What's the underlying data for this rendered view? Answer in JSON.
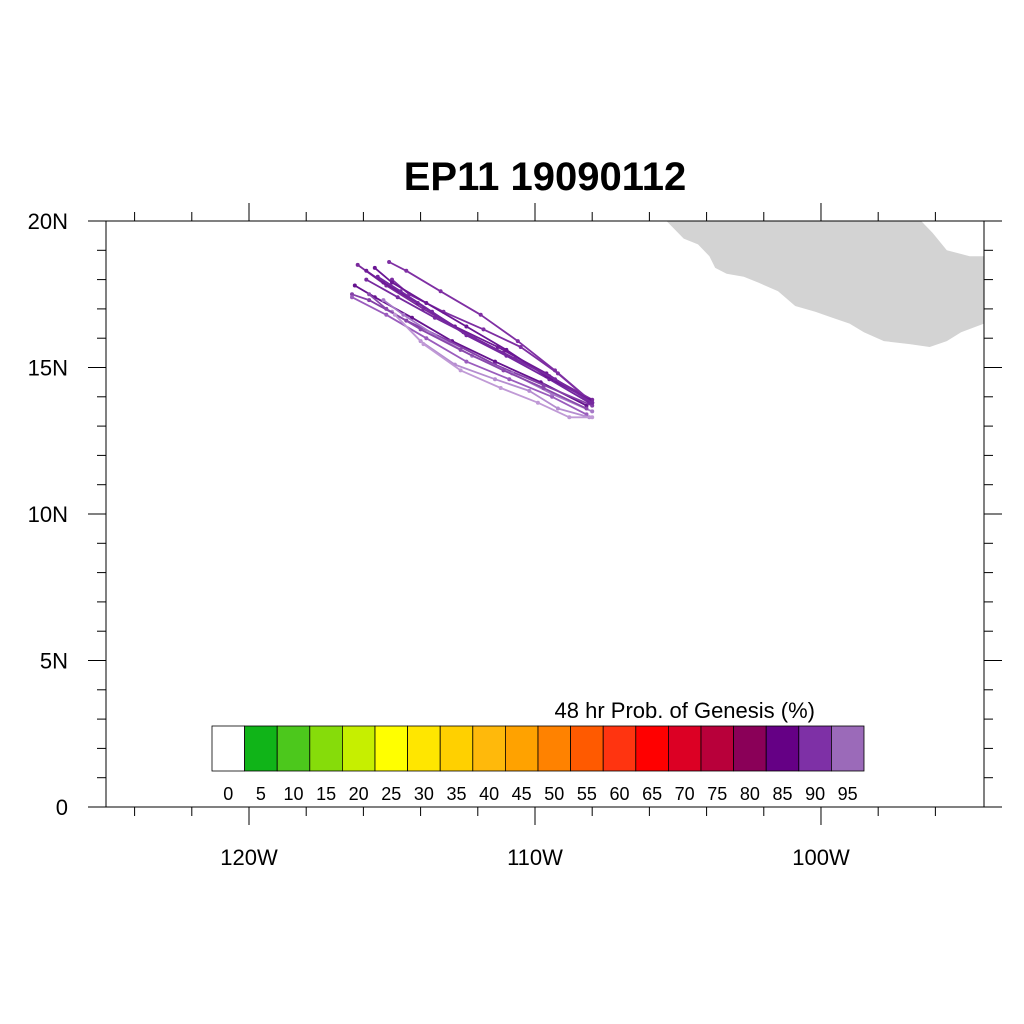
{
  "title": "EP11 19090112",
  "map": {
    "lon_range": [
      -125,
      -94.3
    ],
    "lat_range": [
      0,
      20
    ],
    "lat_ticks": [
      {
        "value": 0,
        "label": "0"
      },
      {
        "value": 5,
        "label": "5N"
      },
      {
        "value": 10,
        "label": "10N"
      },
      {
        "value": 15,
        "label": "15N"
      },
      {
        "value": 20,
        "label": "20N"
      }
    ],
    "lon_ticks": [
      {
        "value": -120,
        "label": "120W"
      },
      {
        "value": -110,
        "label": "110W"
      },
      {
        "value": -100,
        "label": "100W"
      }
    ],
    "land_color": "#d3d3d3",
    "land_outline": [
      [
        -105.4,
        20
      ],
      [
        -104.8,
        19.4
      ],
      [
        -104.3,
        19.2
      ],
      [
        -103.9,
        18.8
      ],
      [
        -103.7,
        18.4
      ],
      [
        -103.3,
        18.2
      ],
      [
        -102.7,
        18.1
      ],
      [
        -102.2,
        17.9
      ],
      [
        -101.5,
        17.6
      ],
      [
        -100.9,
        17.1
      ],
      [
        -100.2,
        16.9
      ],
      [
        -99.6,
        16.7
      ],
      [
        -99,
        16.5
      ],
      [
        -98.5,
        16.2
      ],
      [
        -97.8,
        15.9
      ],
      [
        -96.9,
        15.8
      ],
      [
        -96.2,
        15.7
      ],
      [
        -95.6,
        15.9
      ],
      [
        -95.1,
        16.2
      ],
      [
        -94.3,
        16.5
      ],
      [
        -94.3,
        18.8
      ],
      [
        -94.8,
        18.8
      ],
      [
        -95.6,
        19
      ],
      [
        -96.1,
        19.6
      ],
      [
        -96.5,
        20
      ]
    ]
  },
  "colorbar": {
    "title": "48 hr Prob. of Genesis (%)",
    "labels": [
      "0",
      "5",
      "10",
      "15",
      "20",
      "25",
      "30",
      "35",
      "40",
      "45",
      "50",
      "55",
      "60",
      "65",
      "70",
      "75",
      "80",
      "85",
      "90",
      "95"
    ],
    "colors": [
      "#ffffff",
      "#10b418",
      "#4cc81c",
      "#86dc0a",
      "#c6ef00",
      "#ffff00",
      "#ffe600",
      "#ffd000",
      "#ffb90b",
      "#ffa200",
      "#ff8200",
      "#ff5a00",
      "#ff3410",
      "#ff0000",
      "#dc0024",
      "#b8003a",
      "#8a0058",
      "#650085",
      "#7e30a6",
      "#9b6ab9"
    ]
  },
  "tracks": [
    {
      "color": "#7a2a9c",
      "points": [
        [
          -108,
          13.9
        ],
        [
          -109.5,
          14.7
        ],
        [
          -111.1,
          15.5
        ],
        [
          -112.5,
          16.2
        ],
        [
          -113.9,
          17.0
        ],
        [
          -115.2,
          17.8
        ],
        [
          -116.2,
          18.5
        ]
      ]
    },
    {
      "color": "#6e1a96",
      "points": [
        [
          -108,
          13.8
        ],
        [
          -109.6,
          14.8
        ],
        [
          -111.3,
          15.7
        ],
        [
          -112.8,
          16.4
        ],
        [
          -114.1,
          17.2
        ],
        [
          -115.3,
          17.9
        ],
        [
          -115.9,
          18.3
        ]
      ]
    },
    {
      "color": "#7f2fa3",
      "points": [
        [
          -108.1,
          13.9
        ],
        [
          -109.3,
          14.9
        ],
        [
          -110.6,
          15.9
        ],
        [
          -111.9,
          16.8
        ],
        [
          -113.3,
          17.6
        ],
        [
          -114.5,
          18.3
        ],
        [
          -115.1,
          18.6
        ]
      ]
    },
    {
      "color": "#65128e",
      "points": [
        [
          -108.2,
          13.7
        ],
        [
          -109.8,
          14.5
        ],
        [
          -111.4,
          15.2
        ],
        [
          -112.9,
          15.9
        ],
        [
          -114.3,
          16.7
        ],
        [
          -115.6,
          17.4
        ],
        [
          -116.3,
          17.8
        ]
      ]
    },
    {
      "color": "#8440a8",
      "points": [
        [
          -108,
          13.7
        ],
        [
          -109.7,
          14.4
        ],
        [
          -111.4,
          15.1
        ],
        [
          -113.0,
          15.9
        ],
        [
          -114.5,
          16.6
        ],
        [
          -115.8,
          17.3
        ],
        [
          -116.4,
          17.5
        ]
      ]
    },
    {
      "color": "#7326a0",
      "points": [
        [
          -108.1,
          13.8
        ],
        [
          -109.5,
          14.6
        ],
        [
          -111.0,
          15.4
        ],
        [
          -112.4,
          16.1
        ],
        [
          -113.6,
          16.9
        ],
        [
          -114.7,
          17.6
        ],
        [
          -115.5,
          18.1
        ]
      ]
    },
    {
      "color": "#9a5cbd",
      "points": [
        [
          -108.2,
          13.4
        ],
        [
          -109.4,
          14.0
        ],
        [
          -110.9,
          14.6
        ],
        [
          -112.4,
          15.2
        ],
        [
          -113.8,
          16.0
        ],
        [
          -115.2,
          16.8
        ],
        [
          -116.4,
          17.4
        ]
      ]
    },
    {
      "color": "#b58dd0",
      "points": [
        [
          -108.1,
          13.3
        ],
        [
          -109.2,
          13.6
        ],
        [
          -110.2,
          14.2
        ],
        [
          -111.4,
          14.6
        ],
        [
          -112.8,
          15.1
        ],
        [
          -114.0,
          15.9
        ],
        [
          -115.0,
          16.9
        ]
      ]
    },
    {
      "color": "#a679c7",
      "points": [
        [
          -108,
          13.5
        ],
        [
          -109.4,
          14.1
        ],
        [
          -110.8,
          14.8
        ],
        [
          -112.2,
          15.4
        ],
        [
          -113.5,
          16.1
        ],
        [
          -114.6,
          16.8
        ],
        [
          -115.3,
          17.3
        ]
      ]
    },
    {
      "color": "#7d2ea2",
      "points": [
        [
          -108,
          13.8
        ],
        [
          -109.2,
          14.8
        ],
        [
          -110.5,
          15.7
        ],
        [
          -111.8,
          16.3
        ],
        [
          -113.2,
          16.9
        ],
        [
          -114.4,
          17.5
        ],
        [
          -115.0,
          18.0
        ]
      ]
    },
    {
      "color": "#6a1694",
      "points": [
        [
          -108.1,
          13.9
        ],
        [
          -109.6,
          14.7
        ],
        [
          -111.0,
          15.6
        ],
        [
          -112.4,
          16.4
        ],
        [
          -113.8,
          17.2
        ],
        [
          -115.0,
          17.9
        ],
        [
          -115.6,
          18.4
        ]
      ]
    },
    {
      "color": "#8948ac",
      "points": [
        [
          -108.2,
          13.6
        ],
        [
          -109.7,
          14.3
        ],
        [
          -111.1,
          14.9
        ],
        [
          -112.6,
          15.6
        ],
        [
          -114.0,
          16.3
        ],
        [
          -115.2,
          17.0
        ],
        [
          -115.8,
          17.5
        ]
      ]
    },
    {
      "color": "#76299f",
      "points": [
        [
          -108,
          13.8
        ],
        [
          -109.3,
          14.6
        ],
        [
          -110.7,
          15.3
        ],
        [
          -112.1,
          16.0
        ],
        [
          -113.5,
          16.7
        ],
        [
          -114.8,
          17.4
        ],
        [
          -115.9,
          18.0
        ]
      ]
    },
    {
      "color": "#c09ad6",
      "points": [
        [
          -108.0,
          13.3
        ],
        [
          -108.8,
          13.3
        ],
        [
          -109.9,
          13.8
        ],
        [
          -111.2,
          14.3
        ],
        [
          -112.6,
          14.9
        ],
        [
          -113.9,
          15.8
        ],
        [
          -114.9,
          16.8
        ]
      ]
    }
  ]
}
